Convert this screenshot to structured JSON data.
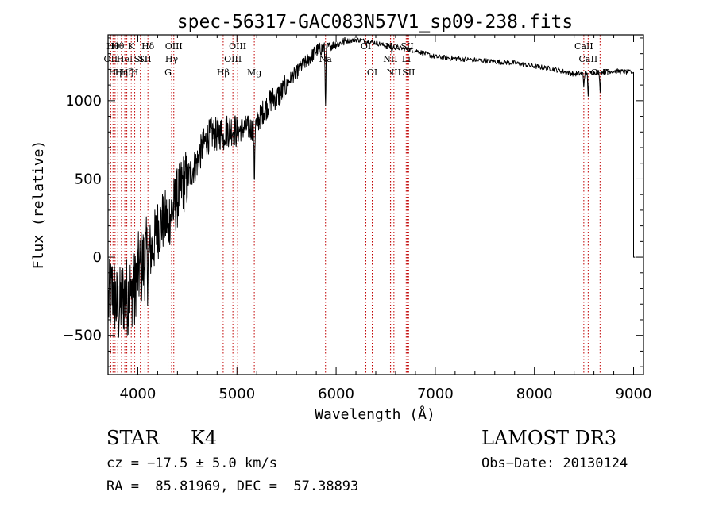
{
  "chart_data": {
    "type": "line",
    "title": "spec-56317-GAC083N57V1_sp09-238.fits",
    "xlabel": "Wavelength (Å)",
    "ylabel": "Flux (relative)",
    "xlim": [
      3700,
      9100
    ],
    "ylim": [
      -750,
      1420
    ],
    "xticks": [
      4000,
      5000,
      6000,
      7000,
      8000,
      9000
    ],
    "yticks": [
      -500,
      0,
      500,
      1000
    ],
    "xtick_labels": [
      "4000",
      "5000",
      "6000",
      "7000",
      "8000",
      "9000"
    ],
    "ytick_labels": [
      "−500",
      "0",
      "500",
      "1000"
    ],
    "grid": false,
    "series": [
      {
        "name": "spectrum",
        "knots": [
          [
            3700,
            -300
          ],
          [
            3750,
            -200
          ],
          [
            3800,
            -350
          ],
          [
            3850,
            -250
          ],
          [
            3900,
            -250
          ],
          [
            3950,
            -150
          ],
          [
            4000,
            -100
          ],
          [
            4050,
            -50
          ],
          [
            4100,
            20
          ],
          [
            4150,
            60
          ],
          [
            4200,
            180
          ],
          [
            4250,
            230
          ],
          [
            4300,
            240
          ],
          [
            4350,
            300
          ],
          [
            4400,
            380
          ],
          [
            4450,
            470
          ],
          [
            4500,
            500
          ],
          [
            4550,
            560
          ],
          [
            4600,
            610
          ],
          [
            4650,
            700
          ],
          [
            4700,
            760
          ],
          [
            4750,
            790
          ],
          [
            4800,
            780
          ],
          [
            4850,
            800
          ],
          [
            4900,
            810
          ],
          [
            4950,
            820
          ],
          [
            5000,
            800
          ],
          [
            5050,
            820
          ],
          [
            5100,
            830
          ],
          [
            5150,
            820
          ],
          [
            5200,
            850
          ],
          [
            5250,
            920
          ],
          [
            5300,
            960
          ],
          [
            5350,
            1010
          ],
          [
            5400,
            1020
          ],
          [
            5450,
            1050
          ],
          [
            5500,
            1100
          ],
          [
            5550,
            1150
          ],
          [
            5600,
            1180
          ],
          [
            5650,
            1220
          ],
          [
            5700,
            1250
          ],
          [
            5750,
            1280
          ],
          [
            5800,
            1320
          ],
          [
            5850,
            1330
          ],
          [
            5900,
            1340
          ],
          [
            5950,
            1350
          ],
          [
            6000,
            1360
          ],
          [
            6100,
            1380
          ],
          [
            6200,
            1390
          ],
          [
            6300,
            1380
          ],
          [
            6400,
            1370
          ],
          [
            6500,
            1350
          ],
          [
            6600,
            1340
          ],
          [
            6700,
            1330
          ],
          [
            6800,
            1320
          ],
          [
            6900,
            1300
          ],
          [
            7000,
            1280
          ],
          [
            7200,
            1270
          ],
          [
            7400,
            1260
          ],
          [
            7600,
            1250
          ],
          [
            7800,
            1240
          ],
          [
            8000,
            1220
          ],
          [
            8200,
            1200
          ],
          [
            8400,
            1170
          ],
          [
            8600,
            1180
          ],
          [
            8800,
            1190
          ],
          [
            8980,
            1180
          ]
        ],
        "absorption": [
          {
            "lambda": 3934,
            "depth": 150
          },
          {
            "lambda": 3969,
            "depth": 150
          },
          {
            "lambda": 4102,
            "depth": 100
          },
          {
            "lambda": 4308,
            "depth": 120
          },
          {
            "lambda": 4861,
            "depth": 60
          },
          {
            "lambda": 5175,
            "depth": 330
          },
          {
            "lambda": 5893,
            "depth": 350
          },
          {
            "lambda": 6563,
            "depth": 40
          },
          {
            "lambda": 8498,
            "depth": 80
          },
          {
            "lambda": 8542,
            "depth": 140
          },
          {
            "lambda": 8662,
            "depth": 120
          }
        ],
        "end_drop": {
          "lambda": 9000,
          "value": 0
        }
      }
    ],
    "line_markers": [
      {
        "lambda": 3727,
        "label": "OII",
        "row": 2
      },
      {
        "lambda": 3750,
        "label": "Hθ",
        "row": 1
      },
      {
        "lambda": 3771,
        "label": "Hη",
        "row": 3
      },
      {
        "lambda": 3798,
        "label": "Hθ",
        "row": 1
      },
      {
        "lambda": 3835,
        "label": "Hη",
        "row": 3
      },
      {
        "lambda": 3869,
        "label": "HeI",
        "row": 2
      },
      {
        "lambda": 3889,
        "label": "Hζ",
        "row": 3
      },
      {
        "lambda": 3934,
        "label": "K",
        "row": 1
      },
      {
        "lambda": 3969,
        "label": "H",
        "row": 3
      },
      {
        "lambda": 4026,
        "label": "SII",
        "row": 2
      },
      {
        "lambda": 4072,
        "label": "SII",
        "row": 2
      },
      {
        "lambda": 4102,
        "label": "Hδ",
        "row": 1
      },
      {
        "lambda": 4305,
        "label": "G",
        "row": 3
      },
      {
        "lambda": 4341,
        "label": "Hγ",
        "row": 2
      },
      {
        "lambda": 4363,
        "label": "OIII",
        "row": 1
      },
      {
        "lambda": 4861,
        "label": "Hβ",
        "row": 3
      },
      {
        "lambda": 4959,
        "label": "OIII",
        "row": 2
      },
      {
        "lambda": 5007,
        "label": "OIII",
        "row": 1
      },
      {
        "lambda": 5175,
        "label": "Mg",
        "row": 3
      },
      {
        "lambda": 5893,
        "label": "Na",
        "row": 2
      },
      {
        "lambda": 6300,
        "label": "OI",
        "row": 1
      },
      {
        "lambda": 6364,
        "label": "OI",
        "row": 3
      },
      {
        "lambda": 6548,
        "label": "NII",
        "row": 2
      },
      {
        "lambda": 6563,
        "label": "Hα",
        "row": 1
      },
      {
        "lambda": 6583,
        "label": "NII",
        "row": 3
      },
      {
        "lambda": 6707,
        "label": "Li",
        "row": 2
      },
      {
        "lambda": 6717,
        "label": "SII",
        "row": 1
      },
      {
        "lambda": 6731,
        "label": "SII",
        "row": 3
      },
      {
        "lambda": 8498,
        "label": "CaII",
        "row": 1
      },
      {
        "lambda": 8542,
        "label": "CaII",
        "row": 2
      },
      {
        "lambda": 8662,
        "label": "CaII",
        "row": 3
      }
    ]
  },
  "info": {
    "class_label": "STAR",
    "subclass_label": "K4",
    "survey": "LAMOST DR3",
    "cz_text": "cz = −17.5 ± 5.0 km/s",
    "obs_date_text": "Obs−Date: 20130124",
    "radec_text": "RA =  85.81969, DEC =  57.38893"
  }
}
